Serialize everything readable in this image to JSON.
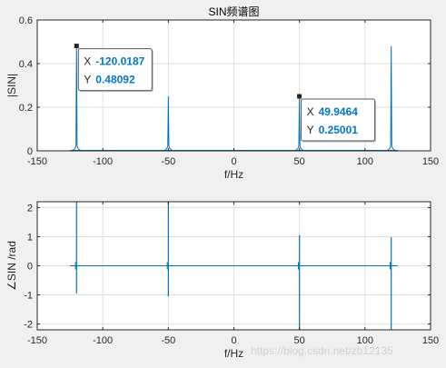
{
  "chart_data": [
    {
      "type": "line",
      "title": "SIN频谱图",
      "xlabel": "f/Hz",
      "ylabel": "|SIN|",
      "xlim": [
        -150,
        150
      ],
      "ylim": [
        0,
        0.6
      ],
      "xticks": [
        -150,
        -100,
        -50,
        0,
        50,
        100,
        150
      ],
      "xtick_labels": [
        "-150",
        "-100",
        "-50",
        "0",
        "50",
        "100",
        "150"
      ],
      "yticks": [
        0,
        0.2,
        0.4,
        0.6
      ],
      "ytick_labels": [
        "0",
        "0.2",
        "0.4",
        "0.6"
      ],
      "grid": true,
      "baseline_range": [
        -125,
        125
      ],
      "color": "#0072bd",
      "peaks": [
        {
          "x": -120.0187,
          "y": 0.48092
        },
        {
          "x": -50,
          "y": 0.25
        },
        {
          "x": 49.9464,
          "y": 0.25001
        },
        {
          "x": 120,
          "y": 0.48
        }
      ],
      "datatips": [
        {
          "x_label": "X",
          "x_value": "-120.0187",
          "y_label": "Y",
          "y_value": "0.48092",
          "x": -120.0187,
          "y": 0.48092
        },
        {
          "x_label": "X",
          "x_value": "49.9464",
          "y_label": "Y",
          "y_value": "0.25001",
          "x": 49.9464,
          "y": 0.25001
        }
      ]
    },
    {
      "type": "line",
      "title": "",
      "xlabel": "f/Hz",
      "ylabel": "∠SIN /rad",
      "xlim": [
        -150,
        150
      ],
      "ylim": [
        -2.2,
        2.2
      ],
      "xticks": [
        -150,
        -100,
        -50,
        0,
        50,
        100,
        150
      ],
      "xtick_labels": [
        "-150",
        "-100",
        "-50",
        "0",
        "50",
        "100",
        "150"
      ],
      "yticks": [
        -2,
        -1,
        0,
        1,
        2
      ],
      "ytick_labels": [
        "-2",
        "-1",
        "0",
        "1",
        "2"
      ],
      "grid": true,
      "baseline_range": [
        -125,
        125
      ],
      "color": "#0072bd",
      "spikes": [
        {
          "x": -120,
          "top": 2.2,
          "bottom": -0.95
        },
        {
          "x": -50,
          "top": 2.2,
          "bottom": -1.05
        },
        {
          "x": 50,
          "top": 1.05,
          "bottom": -2.2
        },
        {
          "x": 120,
          "top": 0.98,
          "bottom": -2.2
        }
      ]
    }
  ],
  "watermark": "https://blog.csdn.net/zb12135"
}
